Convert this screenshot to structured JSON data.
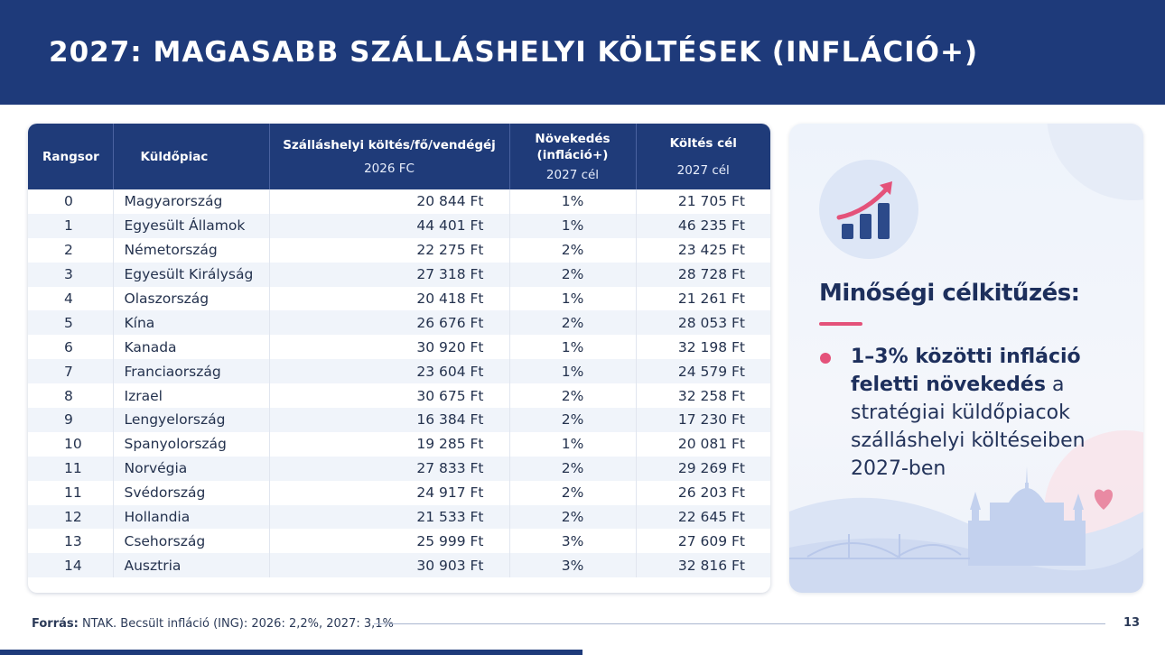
{
  "header": {
    "title": "2027: MAGASABB SZÁLLÁSHELYI KÖLTÉSEK (INFLÁCIÓ+)"
  },
  "table": {
    "columns": {
      "rank": "Rangsor",
      "market": "Küldőpiac",
      "cost": "Szálláshelyi költés/fő/vendégéj",
      "cost_sub": "2026 FC",
      "growth": "Növekedés (infláció+)",
      "growth_sub": "2027 cél",
      "target": "Költés cél",
      "target_sub": "2027 cél"
    },
    "rows": [
      {
        "rank": "0",
        "market": "Magyarország",
        "cost": "20 844 Ft",
        "growth": "1%",
        "target": "21 705 Ft"
      },
      {
        "rank": "1",
        "market": "Egyesült Államok",
        "cost": "44 401 Ft",
        "growth": "1%",
        "target": "46 235 Ft"
      },
      {
        "rank": "2",
        "market": "Németország",
        "cost": "22 275 Ft",
        "growth": "2%",
        "target": "23 425 Ft"
      },
      {
        "rank": "3",
        "market": "Egyesült Királyság",
        "cost": "27 318 Ft",
        "growth": "2%",
        "target": "28 728 Ft"
      },
      {
        "rank": "4",
        "market": "Olaszország",
        "cost": "20 418 Ft",
        "growth": "1%",
        "target": "21 261 Ft"
      },
      {
        "rank": "5",
        "market": "Kína",
        "cost": "26 676 Ft",
        "growth": "2%",
        "target": "28 053 Ft"
      },
      {
        "rank": "6",
        "market": "Kanada",
        "cost": "30 920 Ft",
        "growth": "1%",
        "target": "32 198 Ft"
      },
      {
        "rank": "7",
        "market": "Franciaország",
        "cost": "23 604 Ft",
        "growth": "1%",
        "target": "24 579 Ft"
      },
      {
        "rank": "8",
        "market": "Izrael",
        "cost": "30 675 Ft",
        "growth": "2%",
        "target": "32 258 Ft"
      },
      {
        "rank": "9",
        "market": "Lengyelország",
        "cost": "16 384 Ft",
        "growth": "2%",
        "target": "17 230 Ft"
      },
      {
        "rank": "10",
        "market": "Spanyolország",
        "cost": "19 285 Ft",
        "growth": "1%",
        "target": "20 081 Ft"
      },
      {
        "rank": "11",
        "market": "Norvégia",
        "cost": "27 833 Ft",
        "growth": "2%",
        "target": "29 269 Ft"
      },
      {
        "rank": "11",
        "market": "Svédország",
        "cost": "24 917 Ft",
        "growth": "2%",
        "target": "26 203 Ft"
      },
      {
        "rank": "12",
        "market": "Hollandia",
        "cost": "21 533 Ft",
        "growth": "2%",
        "target": "22 645 Ft"
      },
      {
        "rank": "13",
        "market": "Csehország",
        "cost": "25 999 Ft",
        "growth": "3%",
        "target": "27 609 Ft"
      },
      {
        "rank": "14",
        "market": "Ausztria",
        "cost": "30 903 Ft",
        "growth": "3%",
        "target": "32 816 Ft"
      }
    ]
  },
  "side": {
    "icon": "growth-chart-icon",
    "heading": "Minőségi célkitűzés:",
    "bullet_bold": "1–3% közötti infláció feletti növekedés",
    "bullet_rest": " a stratégiai küldőpiacok szálláshelyi költéseiben 2027-ben",
    "accent_color": "#e4527a"
  },
  "footer": {
    "source_label": "Forrás:",
    "source_text": " NTAK. Becsült infláció (ING): 2026: 2,2%, 2027: 3,1%",
    "page_number": "13"
  }
}
